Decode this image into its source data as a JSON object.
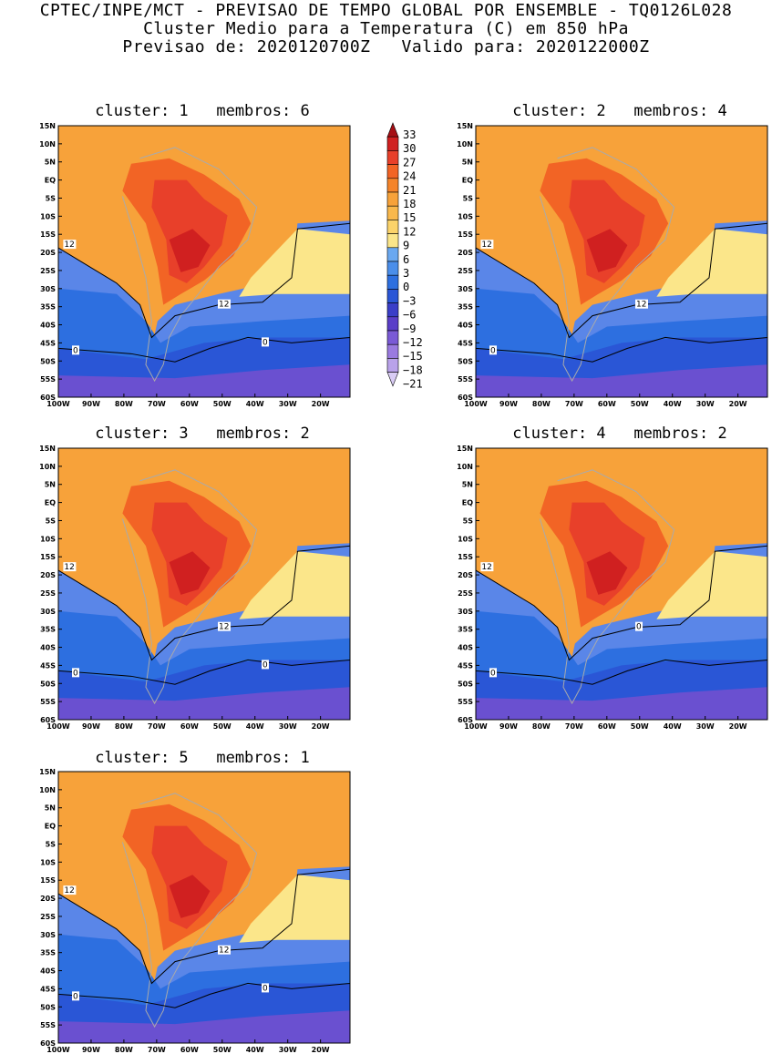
{
  "header": {
    "line1": "CPTEC/INPE/MCT - PREVISAO DE TEMPO GLOBAL POR ENSEMBLE - TQ0126L028",
    "line2": "Cluster Medio para a Temperatura (C) em 850 hPa",
    "line3": "Previsao de: 2020120700Z   Valido para: 2020122000Z"
  },
  "lat_ticks": [
    "15N",
    "10N",
    "5N",
    "EQ",
    "5S",
    "10S",
    "15S",
    "20S",
    "25S",
    "30S",
    "35S",
    "40S",
    "45S",
    "50S",
    "55S",
    "60S"
  ],
  "lon_ticks": [
    "100W",
    "90W",
    "80W",
    "70W",
    "60W",
    "50W",
    "40W",
    "30W",
    "20W"
  ],
  "colorbar": {
    "levels": [
      "33",
      "30",
      "27",
      "24",
      "21",
      "18",
      "15",
      "12",
      "9",
      "6",
      "3",
      "0",
      "-3",
      "-6",
      "-9",
      "-12",
      "-15",
      "-18",
      "-21"
    ],
    "colors": [
      "#a50f15",
      "#d02020",
      "#e8402a",
      "#f26425",
      "#f5842a",
      "#f7a23a",
      "#f9b84c",
      "#fbd36a",
      "#fbe68a",
      "#6aa8f0",
      "#4a8eea",
      "#2d6fe0",
      "#2a56d6",
      "#3a3ec8",
      "#5a3ec8",
      "#7a5ad6",
      "#9a7ae0",
      "#b9a2ea",
      "#d9ccf4"
    ]
  },
  "panels": [
    {
      "title": "cluster: 1   membros: 6",
      "contours": [
        "12",
        "12",
        "0",
        "0"
      ]
    },
    {
      "title": "cluster: 2   membros: 4",
      "contours": [
        "12",
        "12",
        "0"
      ]
    },
    {
      "title": "cluster: 3   membros: 2",
      "contours": [
        "12",
        "12",
        "0",
        "0"
      ]
    },
    {
      "title": "cluster: 4   membros: 2",
      "contours": [
        "12",
        "0",
        "0"
      ]
    },
    {
      "title": "cluster: 5   membros: 1",
      "contours": [
        "12",
        "12",
        "0",
        "0"
      ]
    }
  ]
}
